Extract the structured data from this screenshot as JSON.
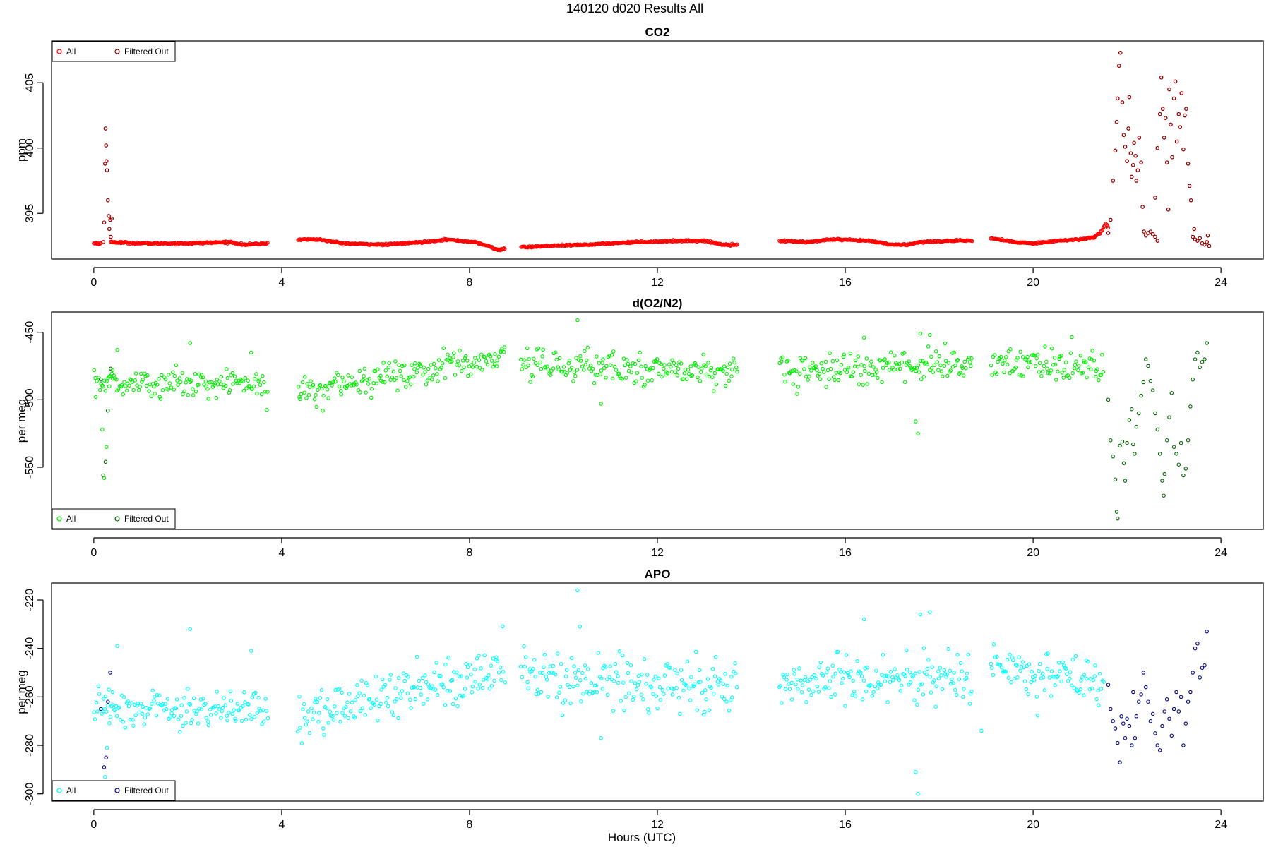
{
  "main_title": "140120   d020   Results All",
  "x_axis_label": "Hours (UTC)",
  "x_ticks": [
    "0",
    "4",
    "8",
    "12",
    "16",
    "20",
    "24"
  ],
  "chart_data": [
    {
      "type": "scatter",
      "title": "CO2",
      "ylabel": "ppm",
      "xlim": [
        -0.9,
        24.9
      ],
      "ylim": [
        391.5,
        408.2
      ],
      "yticks": [
        395,
        400,
        405
      ],
      "ytick_labels": [
        "395",
        "400",
        "405"
      ],
      "legend": {
        "position": "top-left",
        "entries": [
          "All",
          "Filtered Out"
        ]
      },
      "colors": {
        "all": "#ff0000",
        "filtered": "#8b0000"
      },
      "segments": [
        {
          "x_start": 0.0,
          "x_end": 0.15,
          "anchors": [
            [
              0.0,
              392.7
            ],
            [
              0.15,
              392.7
            ]
          ]
        },
        {
          "x_start": 0.36,
          "x_end": 3.7,
          "anchors": [
            [
              0.36,
              392.8
            ],
            [
              1.0,
              392.7
            ],
            [
              2.0,
              392.7
            ],
            [
              2.9,
              392.8
            ],
            [
              3.2,
              392.6
            ],
            [
              3.7,
              392.7
            ]
          ]
        },
        {
          "x_start": 4.35,
          "x_end": 8.75,
          "anchors": [
            [
              4.35,
              393.0
            ],
            [
              4.8,
              393.0
            ],
            [
              5.3,
              392.7
            ],
            [
              6.2,
              392.6
            ],
            [
              7.0,
              392.8
            ],
            [
              7.5,
              393.0
            ],
            [
              8.1,
              392.8
            ],
            [
              8.4,
              392.5
            ],
            [
              8.6,
              392.2
            ],
            [
              8.75,
              392.3
            ]
          ]
        },
        {
          "x_start": 9.1,
          "x_end": 13.7,
          "anchors": [
            [
              9.1,
              392.4
            ],
            [
              9.7,
              392.5
            ],
            [
              10.5,
              392.6
            ],
            [
              11.5,
              392.8
            ],
            [
              12.5,
              392.9
            ],
            [
              13.0,
              392.9
            ],
            [
              13.4,
              392.6
            ],
            [
              13.7,
              392.6
            ]
          ]
        },
        {
          "x_start": 14.6,
          "x_end": 18.7,
          "anchors": [
            [
              14.6,
              392.9
            ],
            [
              15.2,
              392.8
            ],
            [
              15.7,
              393.0
            ],
            [
              16.5,
              392.9
            ],
            [
              17.0,
              392.6
            ],
            [
              17.3,
              392.6
            ],
            [
              17.6,
              392.8
            ],
            [
              18.2,
              392.9
            ],
            [
              18.7,
              392.9
            ]
          ]
        },
        {
          "x_start": 19.1,
          "x_end": 21.3,
          "anchors": [
            [
              19.1,
              393.1
            ],
            [
              19.6,
              392.8
            ],
            [
              20.0,
              392.7
            ],
            [
              20.5,
              392.9
            ],
            [
              21.0,
              393.0
            ],
            [
              21.3,
              393.2
            ]
          ]
        },
        {
          "x_start": 21.3,
          "x_end": 21.6,
          "anchors": [
            [
              21.3,
              393.2
            ],
            [
              21.45,
              393.6
            ],
            [
              21.55,
              394.2
            ],
            [
              21.6,
              393.9
            ]
          ]
        }
      ],
      "spikes": [
        [
          0.2,
          392.8
        ],
        [
          0.22,
          394.3
        ],
        [
          0.24,
          398.8
        ],
        [
          0.25,
          401.5
        ],
        [
          0.26,
          400.2
        ],
        [
          0.27,
          399.0
        ],
        [
          0.28,
          398.3
        ],
        [
          0.3,
          396.0
        ],
        [
          0.32,
          394.8
        ],
        [
          0.33,
          393.8
        ],
        [
          0.35,
          394.5
        ],
        [
          0.36,
          393.2
        ],
        [
          0.38,
          394.6
        ],
        [
          21.6,
          393.5
        ],
        [
          21.65,
          394.5
        ],
        [
          21.7,
          397.5
        ],
        [
          21.75,
          399.8
        ],
        [
          21.78,
          402.0
        ],
        [
          21.8,
          403.8
        ],
        [
          21.83,
          406.3
        ],
        [
          21.86,
          407.3
        ],
        [
          21.9,
          403.5
        ],
        [
          21.93,
          401.0
        ],
        [
          21.96,
          400.1
        ],
        [
          22.0,
          399.0
        ],
        [
          22.03,
          401.5
        ],
        [
          22.05,
          403.9
        ],
        [
          22.08,
          399.6
        ],
        [
          22.1,
          397.8
        ],
        [
          22.13,
          398.7
        ],
        [
          22.15,
          400.4
        ],
        [
          22.18,
          399.4
        ],
        [
          22.2,
          397.5
        ],
        [
          22.23,
          398.3
        ],
        [
          22.26,
          400.8
        ],
        [
          22.3,
          398.9
        ],
        [
          22.33,
          395.5
        ],
        [
          22.36,
          393.6
        ],
        [
          22.4,
          393.3
        ],
        [
          22.45,
          393.5
        ],
        [
          22.5,
          393.6
        ],
        [
          22.55,
          393.4
        ],
        [
          22.6,
          393.2
        ],
        [
          22.65,
          392.9
        ],
        [
          22.6,
          396.2
        ],
        [
          22.65,
          400.0
        ],
        [
          22.7,
          402.6
        ],
        [
          22.73,
          405.4
        ],
        [
          22.76,
          403.0
        ],
        [
          22.79,
          400.8
        ],
        [
          22.82,
          402.3
        ],
        [
          22.85,
          398.9
        ],
        [
          22.88,
          395.3
        ],
        [
          22.9,
          404.5
        ],
        [
          22.93,
          401.8
        ],
        [
          22.96,
          399.3
        ],
        [
          23.0,
          403.8
        ],
        [
          23.03,
          405.1
        ],
        [
          23.06,
          400.5
        ],
        [
          23.1,
          402.6
        ],
        [
          23.13,
          401.6
        ],
        [
          23.16,
          404.2
        ],
        [
          23.2,
          399.9
        ],
        [
          23.23,
          402.5
        ],
        [
          23.26,
          403.0
        ],
        [
          23.3,
          398.8
        ],
        [
          23.33,
          397.1
        ],
        [
          23.36,
          396.0
        ],
        [
          23.4,
          393.2
        ],
        [
          23.43,
          393.8
        ],
        [
          23.45,
          393.0
        ],
        [
          23.5,
          392.9
        ],
        [
          23.55,
          393.1
        ],
        [
          23.6,
          392.7
        ],
        [
          23.65,
          392.6
        ],
        [
          23.7,
          392.8
        ],
        [
          23.72,
          393.3
        ],
        [
          23.75,
          392.5
        ]
      ]
    },
    {
      "type": "scatter",
      "title": "d(O2/N2)",
      "ylabel": "per meg",
      "xlim": [
        -0.9,
        24.9
      ],
      "ylim": [
        -596,
        -435
      ],
      "yticks": [
        -450,
        -500,
        -550
      ],
      "ytick_labels": [
        "-450",
        "-500",
        "-550"
      ],
      "legend": {
        "position": "bottom-left",
        "entries": [
          "All",
          "Filtered Out"
        ]
      },
      "colors": {
        "all": "#00ee00",
        "filtered": "#006400"
      },
      "segments": [
        {
          "x_start": 0.0,
          "x_end": 3.7,
          "start": -487,
          "end": -488,
          "noise": 5.5
        },
        {
          "x_start": 4.35,
          "x_end": 8.75,
          "start": -493,
          "end": -468,
          "noise": 5.5
        },
        {
          "x_start": 9.1,
          "x_end": 13.7,
          "start": -474,
          "end": -479,
          "noise": 6
        },
        {
          "x_start": 14.6,
          "x_end": 18.7,
          "start": -478,
          "end": -473,
          "noise": 6
        },
        {
          "x_start": 19.1,
          "x_end": 21.5,
          "start": -472,
          "end": -478,
          "noise": 6
        }
      ],
      "spikes": [
        [
          0.15,
          -485
        ],
        [
          0.18,
          -522
        ],
        [
          0.2,
          -556
        ],
        [
          0.22,
          -558
        ],
        [
          0.25,
          -546
        ],
        [
          0.27,
          -535
        ],
        [
          0.3,
          -508
        ],
        [
          0.33,
          -490
        ],
        [
          0.36,
          -477
        ],
        [
          0.4,
          -478
        ],
        [
          0.5,
          -463
        ],
        [
          2.05,
          -458
        ],
        [
          3.35,
          -465
        ],
        [
          10.3,
          -441
        ],
        [
          10.8,
          -503
        ],
        [
          17.5,
          -516
        ],
        [
          17.55,
          -525
        ],
        [
          17.6,
          -451
        ],
        [
          17.8,
          -452
        ],
        [
          16.4,
          -454
        ],
        [
          21.6,
          -500
        ],
        [
          21.65,
          -530
        ],
        [
          21.7,
          -542
        ],
        [
          21.75,
          -559
        ],
        [
          21.78,
          -583
        ],
        [
          21.8,
          -588
        ],
        [
          21.85,
          -534
        ],
        [
          21.9,
          -531
        ],
        [
          21.93,
          -547
        ],
        [
          21.96,
          -560
        ],
        [
          22.0,
          -532
        ],
        [
          22.05,
          -515
        ],
        [
          22.1,
          -507
        ],
        [
          22.13,
          -533
        ],
        [
          22.16,
          -540
        ],
        [
          22.2,
          -520
        ],
        [
          22.25,
          -510
        ],
        [
          22.3,
          -497
        ],
        [
          22.35,
          -487
        ],
        [
          22.4,
          -470
        ],
        [
          22.45,
          -475
        ],
        [
          22.5,
          -486
        ],
        [
          22.55,
          -493
        ],
        [
          22.6,
          -510
        ],
        [
          22.65,
          -522
        ],
        [
          22.7,
          -540
        ],
        [
          22.75,
          -560
        ],
        [
          22.78,
          -571
        ],
        [
          22.8,
          -555
        ],
        [
          22.85,
          -530
        ],
        [
          22.9,
          -513
        ],
        [
          22.95,
          -495
        ],
        [
          23.0,
          -535
        ],
        [
          23.05,
          -540
        ],
        [
          23.1,
          -548
        ],
        [
          23.15,
          -532
        ],
        [
          23.2,
          -556
        ],
        [
          23.25,
          -551
        ],
        [
          23.3,
          -530
        ],
        [
          23.35,
          -505
        ],
        [
          23.4,
          -485
        ],
        [
          23.45,
          -470
        ],
        [
          23.5,
          -465
        ],
        [
          23.55,
          -476
        ],
        [
          23.6,
          -472
        ],
        [
          23.65,
          -470
        ],
        [
          23.7,
          -458
        ]
      ]
    },
    {
      "type": "scatter",
      "title": "APO",
      "ylabel": "per meg",
      "xlim": [
        -0.9,
        24.9
      ],
      "ylim": [
        -303,
        -213
      ],
      "yticks": [
        -220,
        -240,
        -260,
        -280,
        -300
      ],
      "ytick_labels": [
        "-220",
        "-240",
        "-260",
        "-280",
        "-300"
      ],
      "legend": {
        "position": "bottom-left",
        "entries": [
          "All",
          "Filtered Out"
        ]
      },
      "colors": {
        "all": "#00ffff",
        "filtered": "#00008b"
      },
      "segments": [
        {
          "x_start": 0.0,
          "x_end": 3.7,
          "start": -264,
          "end": -266,
          "noise": 4
        },
        {
          "x_start": 4.35,
          "x_end": 8.75,
          "start": -268,
          "end": -248,
          "noise": 5
        },
        {
          "x_start": 9.1,
          "x_end": 13.7,
          "start": -252,
          "end": -256,
          "noise": 5.5
        },
        {
          "x_start": 14.6,
          "x_end": 18.7,
          "start": -255,
          "end": -250,
          "noise": 5
        },
        {
          "x_start": 19.1,
          "x_end": 21.5,
          "start": -248,
          "end": -255,
          "noise": 5
        }
      ],
      "spikes": [
        [
          0.15,
          -265
        ],
        [
          0.2,
          -266
        ],
        [
          0.22,
          -289
        ],
        [
          0.24,
          -293
        ],
        [
          0.26,
          -285
        ],
        [
          0.28,
          -281
        ],
        [
          0.3,
          -262
        ],
        [
          0.32,
          -257
        ],
        [
          0.35,
          -250
        ],
        [
          0.4,
          -258
        ],
        [
          0.5,
          -239
        ],
        [
          2.05,
          -232
        ],
        [
          3.35,
          -241
        ],
        [
          10.3,
          -216
        ],
        [
          10.35,
          -231
        ],
        [
          10.8,
          -277
        ],
        [
          17.5,
          -291
        ],
        [
          17.55,
          -300
        ],
        [
          17.6,
          -226
        ],
        [
          17.8,
          -225
        ],
        [
          16.4,
          -228
        ],
        [
          18.9,
          -274
        ],
        [
          21.6,
          -255
        ],
        [
          21.65,
          -265
        ],
        [
          21.7,
          -270
        ],
        [
          21.75,
          -273
        ],
        [
          21.8,
          -279
        ],
        [
          21.85,
          -287
        ],
        [
          21.88,
          -268
        ],
        [
          21.92,
          -271
        ],
        [
          21.96,
          -277
        ],
        [
          22.0,
          -269
        ],
        [
          22.05,
          -272
        ],
        [
          22.1,
          -280
        ],
        [
          22.13,
          -258
        ],
        [
          22.17,
          -277
        ],
        [
          22.2,
          -268
        ],
        [
          22.25,
          -262
        ],
        [
          22.3,
          -259
        ],
        [
          22.35,
          -250
        ],
        [
          22.4,
          -256
        ],
        [
          22.45,
          -262
        ],
        [
          22.5,
          -270
        ],
        [
          22.55,
          -267
        ],
        [
          22.6,
          -275
        ],
        [
          22.65,
          -280
        ],
        [
          22.7,
          -282
        ],
        [
          22.75,
          -272
        ],
        [
          22.8,
          -266
        ],
        [
          22.85,
          -261
        ],
        [
          22.9,
          -269
        ],
        [
          22.95,
          -276
        ],
        [
          23.0,
          -265
        ],
        [
          23.05,
          -258
        ],
        [
          23.1,
          -266
        ],
        [
          23.15,
          -260
        ],
        [
          23.2,
          -280
        ],
        [
          23.25,
          -271
        ],
        [
          23.3,
          -262
        ],
        [
          23.35,
          -258
        ],
        [
          23.4,
          -250
        ],
        [
          23.45,
          -240
        ],
        [
          23.5,
          -238
        ],
        [
          23.55,
          -252
        ],
        [
          23.6,
          -248
        ],
        [
          23.65,
          -247
        ],
        [
          23.7,
          -233
        ]
      ]
    }
  ]
}
